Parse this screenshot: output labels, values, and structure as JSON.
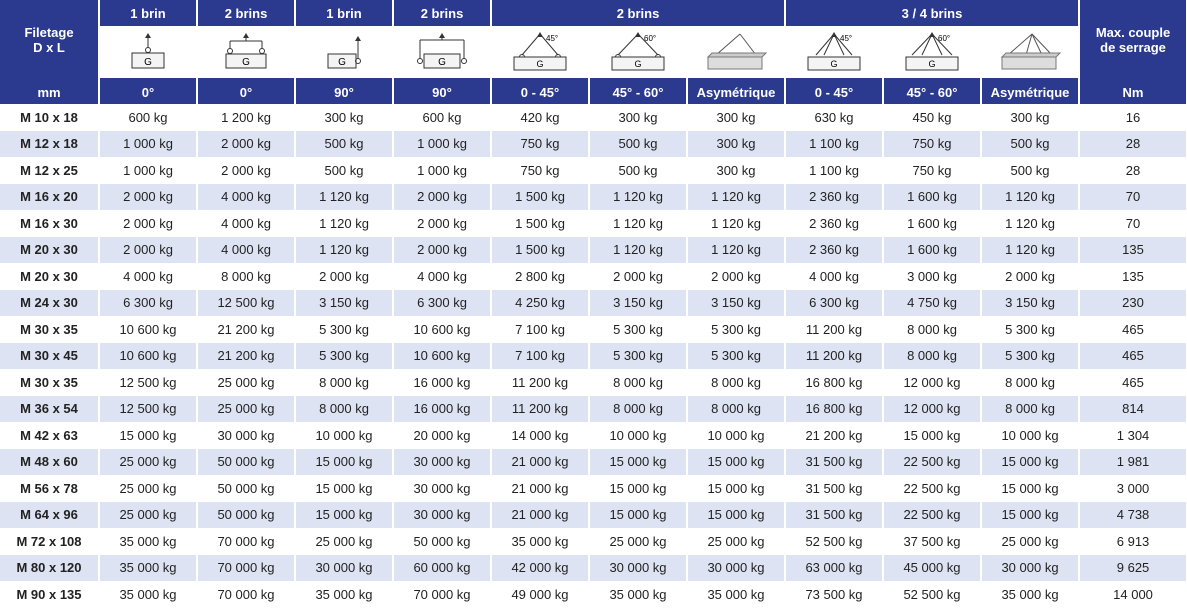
{
  "header": {
    "filetage_line1": "Filetage",
    "filetage_line2": "D x L",
    "maxcouple_line1": "Max. couple",
    "maxcouple_line2": "de serrage",
    "groups": [
      "1 brin",
      "2 brins",
      "1 brin",
      "2 brins",
      "2 brins",
      "3 / 4 brins"
    ],
    "units": [
      "mm",
      "0°",
      "0°",
      "90°",
      "90°",
      "0 - 45°",
      "45° - 60°",
      "Asymétrique",
      "0 - 45°",
      "45° - 60°",
      "Asymétrique",
      "Nm"
    ],
    "icon_angles": [
      "45°",
      "60°",
      "45°",
      "60°"
    ]
  },
  "rows": [
    [
      "M 10 x 18",
      "600 kg",
      "1 200 kg",
      "300 kg",
      "600 kg",
      "420 kg",
      "300 kg",
      "300 kg",
      "630 kg",
      "450 kg",
      "300 kg",
      "16"
    ],
    [
      "M 12 x 18",
      "1 000 kg",
      "2 000 kg",
      "500 kg",
      "1 000 kg",
      "750 kg",
      "500 kg",
      "300 kg",
      "1 100 kg",
      "750 kg",
      "500 kg",
      "28"
    ],
    [
      "M 12 x 25",
      "1 000 kg",
      "2 000 kg",
      "500 kg",
      "1 000 kg",
      "750 kg",
      "500 kg",
      "300 kg",
      "1 100 kg",
      "750 kg",
      "500 kg",
      "28"
    ],
    [
      "M 16 x 20",
      "2 000 kg",
      "4 000 kg",
      "1 120 kg",
      "2 000 kg",
      "1 500 kg",
      "1 120 kg",
      "1 120 kg",
      "2 360 kg",
      "1 600 kg",
      "1 120 kg",
      "70"
    ],
    [
      "M 16 x 30",
      "2 000 kg",
      "4 000 kg",
      "1 120 kg",
      "2 000 kg",
      "1 500 kg",
      "1 120 kg",
      "1 120 kg",
      "2 360 kg",
      "1 600 kg",
      "1 120 kg",
      "70"
    ],
    [
      "M 20 x 30",
      "2 000 kg",
      "4 000 kg",
      "1 120 kg",
      "2 000 kg",
      "1 500 kg",
      "1 120 kg",
      "1 120 kg",
      "2 360 kg",
      "1 600 kg",
      "1 120 kg",
      "135"
    ],
    [
      "M 20 x 30",
      "4 000 kg",
      "8 000 kg",
      "2 000 kg",
      "4 000 kg",
      "2 800 kg",
      "2 000 kg",
      "2 000 kg",
      "4 000 kg",
      "3 000 kg",
      "2 000 kg",
      "135"
    ],
    [
      "M 24 x 30",
      "6 300 kg",
      "12 500 kg",
      "3 150 kg",
      "6 300 kg",
      "4 250 kg",
      "3 150 kg",
      "3 150 kg",
      "6 300 kg",
      "4 750 kg",
      "3 150 kg",
      "230"
    ],
    [
      "M 30 x 35",
      "10 600 kg",
      "21 200 kg",
      "5 300 kg",
      "10 600 kg",
      "7 100 kg",
      "5 300 kg",
      "5 300 kg",
      "11 200 kg",
      "8 000 kg",
      "5 300 kg",
      "465"
    ],
    [
      "M 30 x 45",
      "10 600 kg",
      "21 200 kg",
      "5 300 kg",
      "10 600 kg",
      "7 100 kg",
      "5 300 kg",
      "5 300 kg",
      "11 200 kg",
      "8 000 kg",
      "5 300 kg",
      "465"
    ],
    [
      "M 30 x 35",
      "12 500 kg",
      "25 000 kg",
      "8 000 kg",
      "16 000 kg",
      "11 200 kg",
      "8 000 kg",
      "8 000 kg",
      "16 800 kg",
      "12 000 kg",
      "8 000 kg",
      "465"
    ],
    [
      "M 36 x 54",
      "12 500 kg",
      "25 000 kg",
      "8 000 kg",
      "16 000 kg",
      "11 200 kg",
      "8 000 kg",
      "8 000 kg",
      "16 800 kg",
      "12 000 kg",
      "8 000 kg",
      "814"
    ],
    [
      "M 42 x 63",
      "15 000 kg",
      "30 000 kg",
      "10 000 kg",
      "20 000 kg",
      "14 000 kg",
      "10 000 kg",
      "10 000 kg",
      "21 200 kg",
      "15 000 kg",
      "10 000 kg",
      "1 304"
    ],
    [
      "M 48 x 60",
      "25 000 kg",
      "50 000 kg",
      "15 000 kg",
      "30 000 kg",
      "21 000 kg",
      "15 000 kg",
      "15 000 kg",
      "31 500 kg",
      "22 500 kg",
      "15 000 kg",
      "1 981"
    ],
    [
      "M 56 x 78",
      "25 000 kg",
      "50 000 kg",
      "15 000 kg",
      "30 000 kg",
      "21 000 kg",
      "15 000 kg",
      "15 000 kg",
      "31 500 kg",
      "22 500 kg",
      "15 000 kg",
      "3 000"
    ],
    [
      "M 64 x 96",
      "25 000 kg",
      "50 000 kg",
      "15 000 kg",
      "30 000 kg",
      "21 000 kg",
      "15 000 kg",
      "15 000 kg",
      "31 500 kg",
      "22 500 kg",
      "15 000 kg",
      "4 738"
    ],
    [
      "M 72 x 108",
      "35 000 kg",
      "70 000 kg",
      "25 000 kg",
      "50 000 kg",
      "35 000 kg",
      "25 000 kg",
      "25 000 kg",
      "52 500 kg",
      "37 500 kg",
      "25 000 kg",
      "6 913"
    ],
    [
      "M 80 x 120",
      "35 000 kg",
      "70 000 kg",
      "30 000 kg",
      "60 000 kg",
      "42 000 kg",
      "30 000 kg",
      "30 000 kg",
      "63 000 kg",
      "45 000 kg",
      "30 000 kg",
      "9 625"
    ],
    [
      "M 90 x 135",
      "35 000 kg",
      "70 000 kg",
      "35 000 kg",
      "70 000 kg",
      "49 000 kg",
      "35 000 kg",
      "35 000 kg",
      "73 500 kg",
      "52 500 kg",
      "35 000 kg",
      "14 000"
    ]
  ],
  "colors": {
    "header_bg": "#2b3a8f",
    "alt_row_bg": "#dde3f2"
  }
}
